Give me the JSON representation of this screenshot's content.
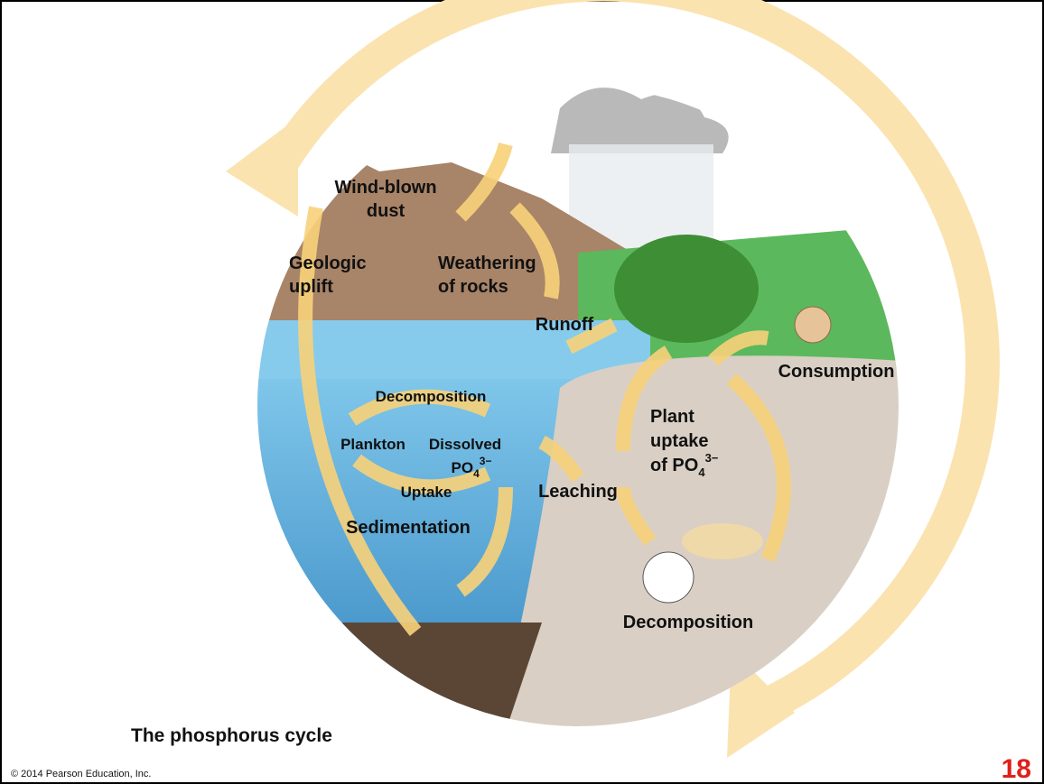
{
  "diagram": {
    "title": "The phosphorus cycle",
    "copyright": "© 2014 Pearson Education, Inc.",
    "slide_number": "18",
    "labels": {
      "wind_blown_dust": [
        "Wind-blown",
        "dust"
      ],
      "geologic_uplift": [
        "Geologic",
        "uplift"
      ],
      "weathering": [
        "Weathering",
        "of rocks"
      ],
      "runoff": "Runoff",
      "consumption": "Consumption",
      "decomposition_water": "Decomposition",
      "plankton": "Plankton",
      "dissolved": {
        "line1": "Dissolved",
        "formula": "PO",
        "subscript": "4",
        "superscript": "3−"
      },
      "uptake": "Uptake",
      "leaching": "Leaching",
      "plant_uptake": {
        "line1": "Plant",
        "line2": "uptake",
        "line3": "of PO",
        "subscript": "4",
        "superscript": "3−"
      },
      "sedimentation": "Sedimentation",
      "decomposition_land": "Decomposition"
    }
  }
}
